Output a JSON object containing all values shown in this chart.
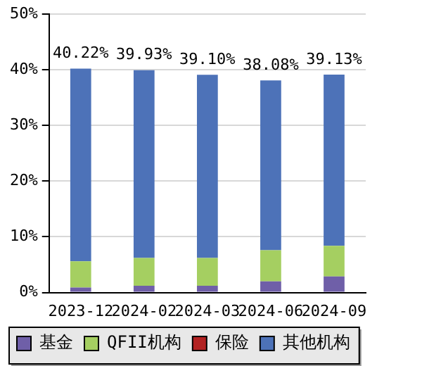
{
  "chart_data": {
    "type": "bar",
    "stacked": true,
    "categories": [
      "2023-12",
      "2024-02",
      "2024-03",
      "2024-06",
      "2024-09"
    ],
    "series": [
      {
        "name": "基金",
        "color": "#6f5fa8",
        "values": [
          0.9,
          1.2,
          1.2,
          2.0,
          2.9
        ]
      },
      {
        "name": "QFII机构",
        "color": "#a5cf61",
        "values": [
          4.7,
          5.0,
          5.0,
          5.6,
          5.5
        ]
      },
      {
        "name": "保险",
        "color": "#b22222",
        "values": [
          0,
          0,
          0,
          0,
          0
        ]
      },
      {
        "name": "其他机构",
        "color": "#4d72b8",
        "values": [
          34.62,
          33.73,
          32.9,
          30.48,
          30.73
        ]
      }
    ],
    "totals": [
      "40.22%",
      "39.93%",
      "39.10%",
      "38.08%",
      "39.13%"
    ],
    "ylim": [
      0,
      50
    ],
    "yticks": [
      {
        "value": 0,
        "label": "0%"
      },
      {
        "value": 10,
        "label": "10%"
      },
      {
        "value": 20,
        "label": "20%"
      },
      {
        "value": 30,
        "label": "30%"
      },
      {
        "value": 40,
        "label": "40%"
      },
      {
        "value": 50,
        "label": "50%"
      }
    ],
    "grid": "y",
    "legend": "bottom"
  }
}
